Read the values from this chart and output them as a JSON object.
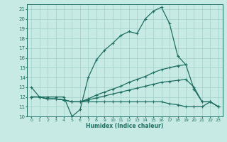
{
  "xlabel": "Humidex (Indice chaleur)",
  "bg_color": "#c8eae4",
  "grid_color": "#a0cfc8",
  "line_color": "#1e6e62",
  "xlim": [
    -0.5,
    23.5
  ],
  "ylim": [
    10,
    21.5
  ],
  "yticks": [
    10,
    11,
    12,
    13,
    14,
    15,
    16,
    17,
    18,
    19,
    20,
    21
  ],
  "xticks": [
    0,
    1,
    2,
    3,
    4,
    5,
    6,
    7,
    8,
    9,
    10,
    11,
    12,
    13,
    14,
    15,
    16,
    17,
    18,
    19,
    20,
    21,
    22,
    23
  ],
  "series": [
    {
      "x": [
        0,
        1,
        2,
        3,
        4,
        5,
        6,
        7,
        8,
        9,
        10,
        11,
        12,
        13,
        14,
        15,
        16,
        17,
        18,
        19,
        20,
        21,
        22,
        23
      ],
      "y": [
        13,
        12,
        12,
        12,
        12,
        10,
        10.7,
        14,
        15.8,
        16.8,
        17.5,
        18.3,
        18.7,
        18.5,
        20,
        20.8,
        21.2,
        19.5,
        16.2,
        15.3,
        null,
        null,
        null,
        null
      ]
    },
    {
      "x": [
        0,
        1,
        2,
        3,
        4,
        5,
        6,
        7,
        8,
        9,
        10,
        11,
        12,
        13,
        14,
        15,
        16,
        17,
        18,
        19,
        20,
        21,
        22,
        23
      ],
      "y": [
        12,
        12,
        11.8,
        11.8,
        11.7,
        11.5,
        11.5,
        11.8,
        12.2,
        12.5,
        12.8,
        13.1,
        13.5,
        13.8,
        14.1,
        14.5,
        14.8,
        15.0,
        15.2,
        15.3,
        12.8,
        11.5,
        11.5,
        11.0
      ]
    },
    {
      "x": [
        0,
        1,
        2,
        3,
        4,
        5,
        6,
        7,
        8,
        9,
        10,
        11,
        12,
        13,
        14,
        15,
        16,
        17,
        18,
        19,
        20,
        21,
        22,
        23
      ],
      "y": [
        12,
        12,
        11.8,
        11.8,
        11.7,
        11.5,
        11.5,
        11.7,
        11.9,
        12.1,
        12.3,
        12.5,
        12.7,
        12.9,
        13.1,
        13.3,
        13.5,
        13.6,
        13.7,
        13.8,
        13.0,
        11.5,
        11.5,
        11.0
      ]
    },
    {
      "x": [
        0,
        1,
        2,
        3,
        4,
        5,
        6,
        7,
        8,
        9,
        10,
        11,
        12,
        13,
        14,
        15,
        16,
        17,
        18,
        19,
        20,
        21,
        22,
        23
      ],
      "y": [
        12,
        12,
        11.8,
        11.8,
        11.7,
        11.5,
        11.5,
        11.5,
        11.5,
        11.5,
        11.5,
        11.5,
        11.5,
        11.5,
        11.5,
        11.5,
        11.5,
        11.3,
        11.2,
        11.0,
        11.0,
        11.0,
        11.5,
        11.0
      ]
    }
  ]
}
